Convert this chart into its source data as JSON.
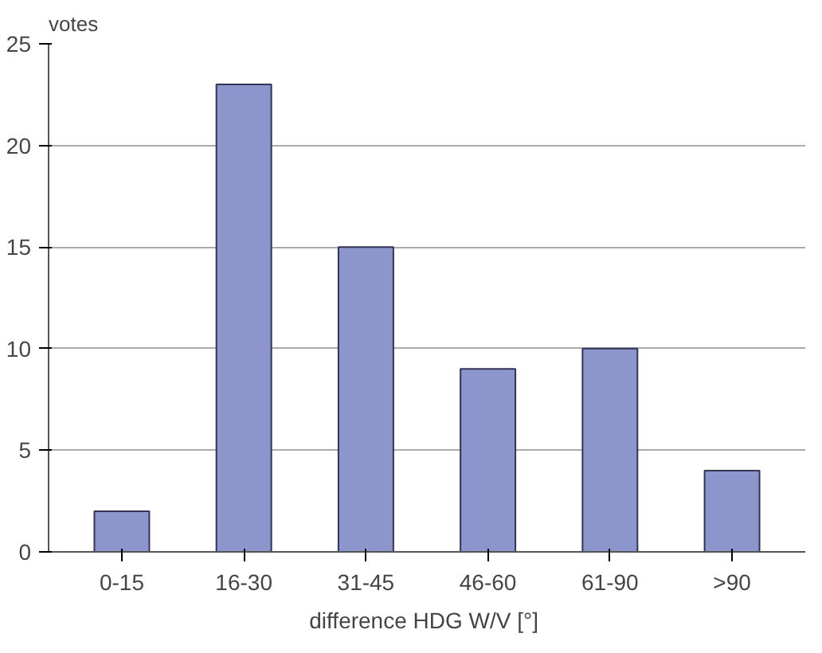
{
  "chart_data": {
    "type": "bar",
    "ylabel": "votes",
    "xlabel": "difference HDG W/V  [°]",
    "categories": [
      "0-15",
      "16-30",
      "31-45",
      "46-60",
      "61-90",
      ">90"
    ],
    "values": [
      2,
      23,
      15,
      9,
      10,
      4
    ],
    "color": "#8c96cc",
    "ylim": [
      0,
      25
    ],
    "yticks": [
      0,
      5,
      10,
      15,
      20,
      25
    ],
    "grid": "y"
  }
}
